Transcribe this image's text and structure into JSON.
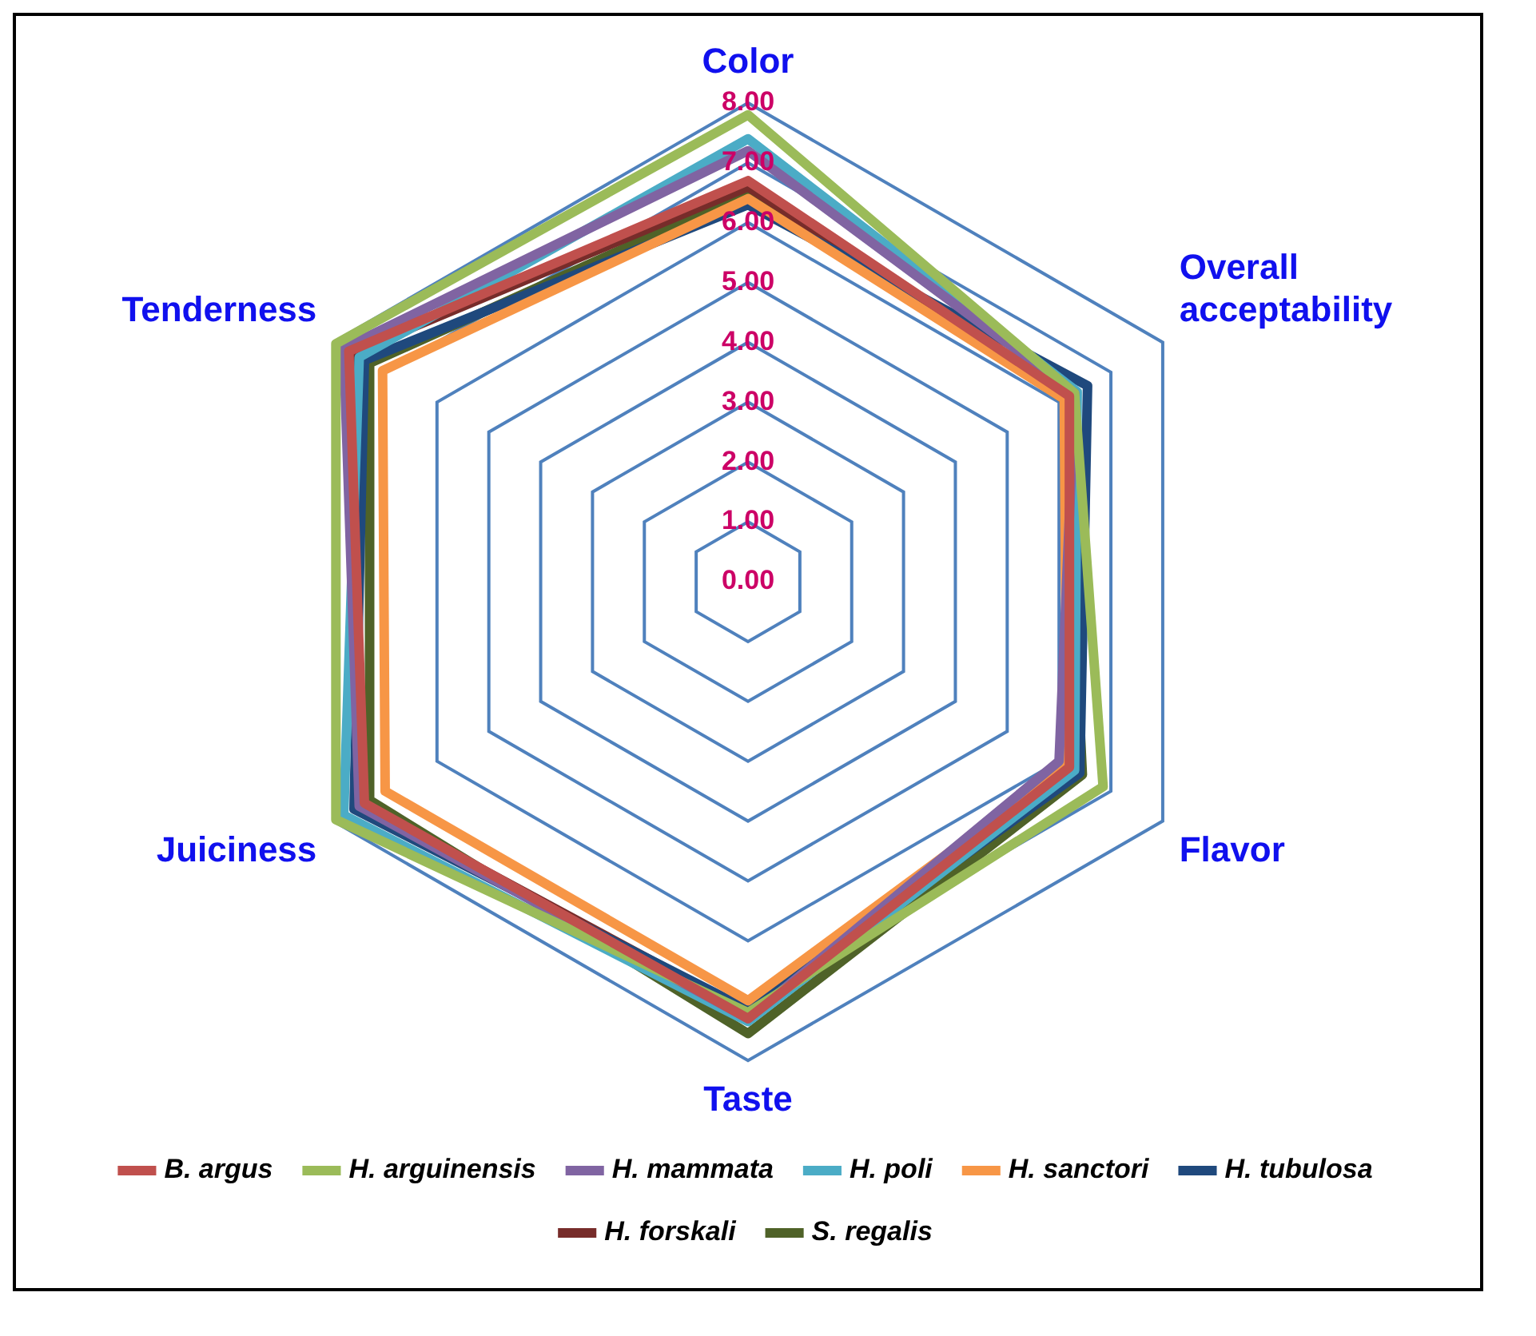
{
  "chart_data": {
    "type": "radar",
    "categories": [
      "Color",
      "Overall acceptability",
      "Flavor",
      "Taste",
      "Juiciness",
      "Tenderness"
    ],
    "ylim": [
      0,
      8
    ],
    "yticks": [
      {
        "value": 0,
        "label": "0.00"
      },
      {
        "value": 1,
        "label": "1.00"
      },
      {
        "value": 2,
        "label": "2.00"
      },
      {
        "value": 3,
        "label": "3.00"
      },
      {
        "value": 4,
        "label": "4.00"
      },
      {
        "value": 5,
        "label": "5.00"
      },
      {
        "value": 6,
        "label": "6.00"
      },
      {
        "value": 7,
        "label": "7.00"
      },
      {
        "value": 8,
        "label": "8.00"
      }
    ],
    "grid": true,
    "legend": "bottom",
    "marker": "none",
    "series": [
      {
        "name": "B. argus",
        "color": "#c0504d",
        "values": [
          6.7,
          6.2,
          6.2,
          7.3,
          7.4,
          7.7
        ]
      },
      {
        "name": "H. arguinensis",
        "color": "#9bbb59",
        "values": [
          7.8,
          6.3,
          6.85,
          7.2,
          7.95,
          7.95
        ]
      },
      {
        "name": "H. mammata",
        "color": "#8064a2",
        "values": [
          7.2,
          6.3,
          6.0,
          7.3,
          7.5,
          7.8
        ]
      },
      {
        "name": "H. poli",
        "color": "#4bacc6",
        "values": [
          7.4,
          6.35,
          6.3,
          7.35,
          7.8,
          7.5
        ]
      },
      {
        "name": "H. sanctori",
        "color": "#f79646",
        "values": [
          6.4,
          6.1,
          6.15,
          7.0,
          7.0,
          7.05
        ]
      },
      {
        "name": "H. tubulosa",
        "color": "#1f497d",
        "values": [
          6.3,
          6.55,
          6.4,
          7.15,
          7.6,
          7.4
        ]
      },
      {
        "name": "H. forskali",
        "color": "#772c2a",
        "values": [
          6.6,
          6.2,
          6.3,
          7.2,
          7.45,
          7.65
        ]
      },
      {
        "name": "S. regalis",
        "color": "#4f6228",
        "values": [
          6.5,
          6.1,
          6.45,
          7.55,
          7.3,
          7.3
        ]
      }
    ]
  }
}
